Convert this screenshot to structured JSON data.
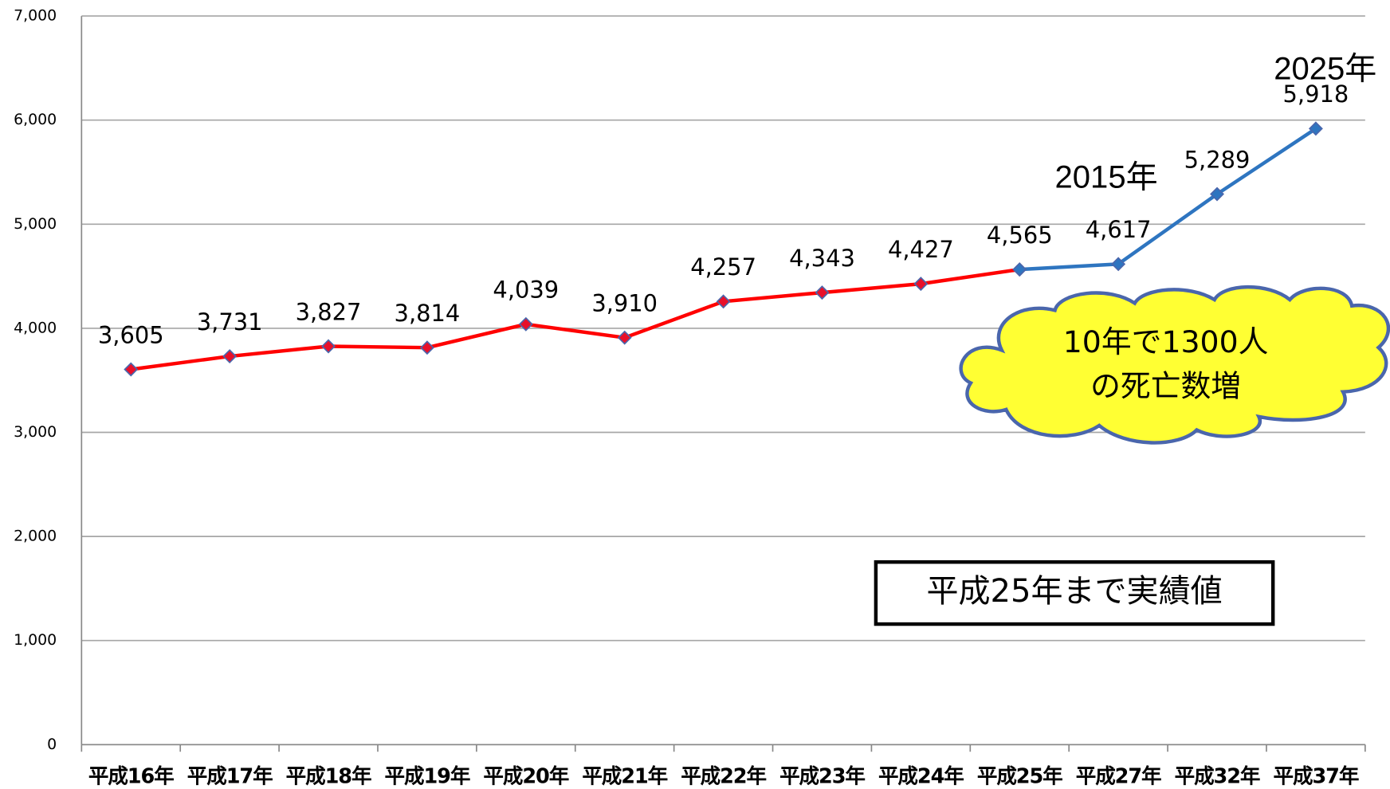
{
  "chart_data": {
    "type": "line",
    "categories": [
      "平成16年",
      "平成17年",
      "平成18年",
      "平成19年",
      "平成20年",
      "平成21年",
      "平成22年",
      "平成23年",
      "平成24年",
      "平成25年",
      "平成27年",
      "平成32年",
      "平成37年"
    ],
    "series": [
      {
        "color": "#ff0000",
        "marker_color": "#e8102a",
        "values": [
          3605,
          3731,
          3827,
          3814,
          4039,
          3910,
          4257,
          4343,
          4427,
          4565,
          null,
          null,
          null
        ],
        "value_labels": [
          "3,605",
          "3,731",
          "3,827",
          "3,814",
          "4,039",
          "3,910",
          "4,257",
          "4,343",
          "4,427",
          "4,565",
          null,
          null,
          null
        ]
      },
      {
        "color": "#2e75c0",
        "marker_color": "#2e75c0",
        "values": [
          null,
          null,
          null,
          null,
          null,
          null,
          null,
          null,
          null,
          4565,
          4617,
          5289,
          5918
        ],
        "value_labels": [
          null,
          null,
          null,
          null,
          null,
          null,
          null,
          null,
          null,
          null,
          "4,617",
          "5,289",
          "5,918"
        ]
      }
    ],
    "ylim": [
      0,
      7000
    ],
    "yticks": [
      0,
      {
        "value": 1000,
        "label": "1,000"
      },
      {
        "value": 2000,
        "label": "2,000"
      },
      {
        "value": 3000,
        "label": "3,000"
      },
      {
        "value": 4000,
        "label": "4,000"
      },
      {
        "value": 5000,
        "label": "5,000"
      },
      {
        "value": 6000,
        "label": "6,000"
      },
      {
        "value": 7000,
        "label": "7,000"
      }
    ],
    "grid": true,
    "annotations": {
      "year_2015": "2015年",
      "year_2025": "2025年",
      "cloud": [
        "10年で1300人",
        "の死亡数増"
      ],
      "box": "平成25年まで実績値"
    }
  }
}
